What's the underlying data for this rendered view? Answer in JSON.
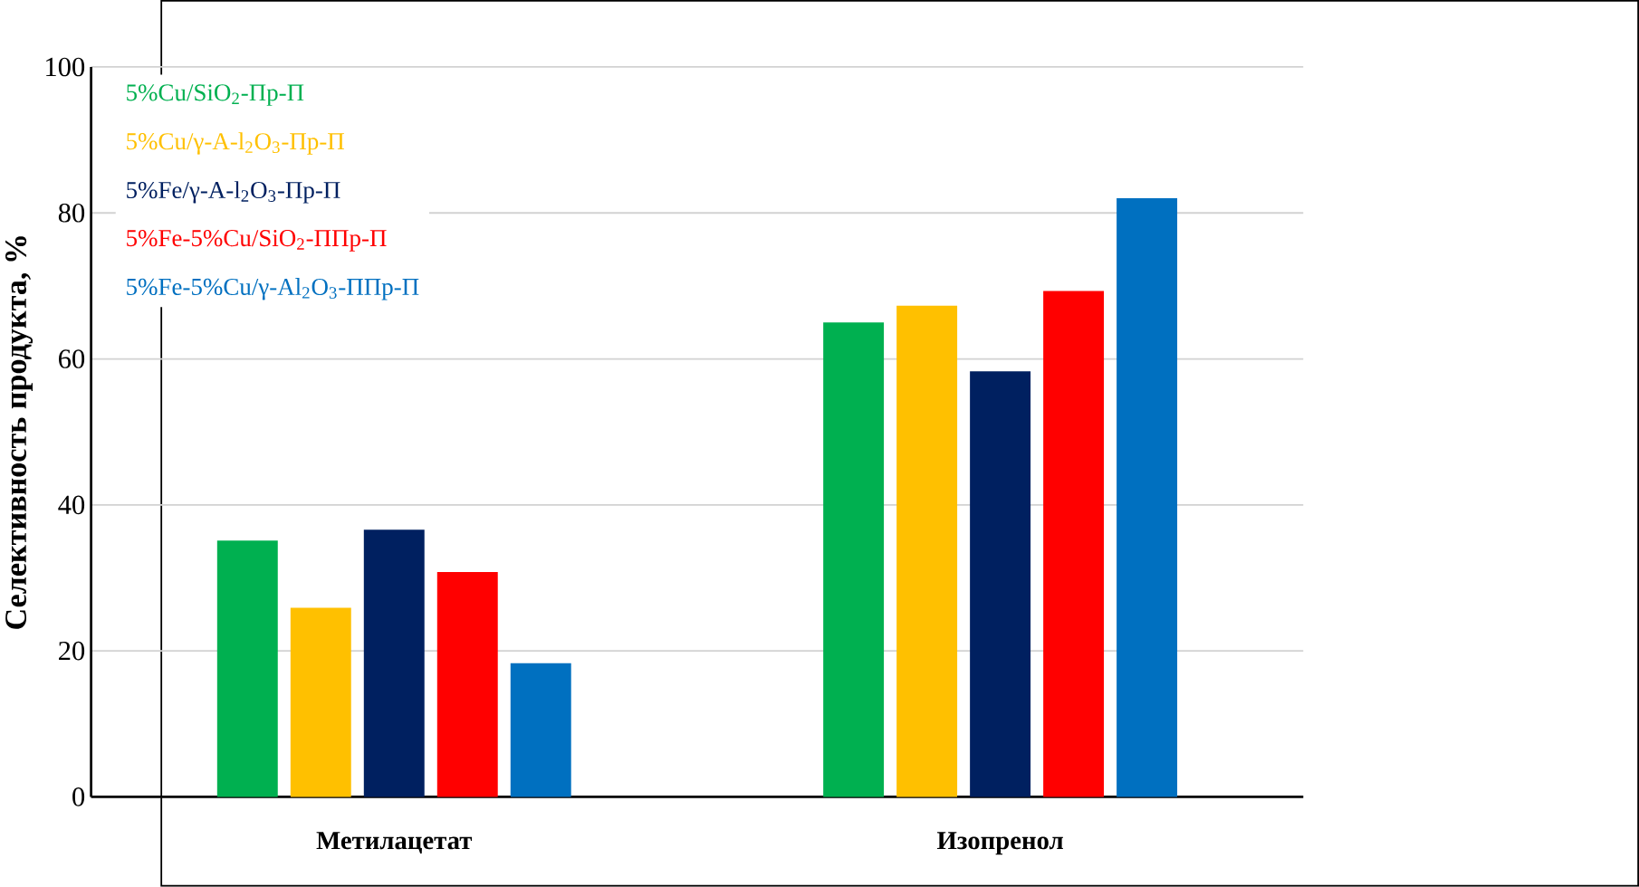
{
  "chart_data": {
    "type": "bar",
    "ylabel": "Селективность продукта, %",
    "categories": [
      "Метилацетат",
      "Изопренол"
    ],
    "series": [
      {
        "name": "5%Cu/SiO$_{2}$-Пр-П",
        "color": "#00b050",
        "values": [
          35.1,
          65.0
        ]
      },
      {
        "name": "5%Cu/γ-A-l$_{2}$O$_{3}$-Пр-П",
        "color": "#ffc000",
        "values": [
          25.9,
          67.3
        ]
      },
      {
        "name": "5%Fe/γ-A-l$_{2}$O$_{3}$-Пр-П",
        "color": "#002060",
        "values": [
          36.6,
          58.3
        ]
      },
      {
        "name": "5%Fe-5%Cu/SiO$_{2}$-ППр-П",
        "color": "#ff0000",
        "values": [
          30.8,
          69.3
        ]
      },
      {
        "name": "5%Fe-5%Cu/γ-Al$_{2}$O$_{3}$-ППр-П",
        "color": "#0070c0",
        "values": [
          18.3,
          82.0
        ]
      }
    ],
    "ylim": [
      0,
      100
    ],
    "yticks": [
      0,
      20,
      40,
      60,
      80,
      100
    ],
    "grid": "y",
    "legend": "top left"
  }
}
